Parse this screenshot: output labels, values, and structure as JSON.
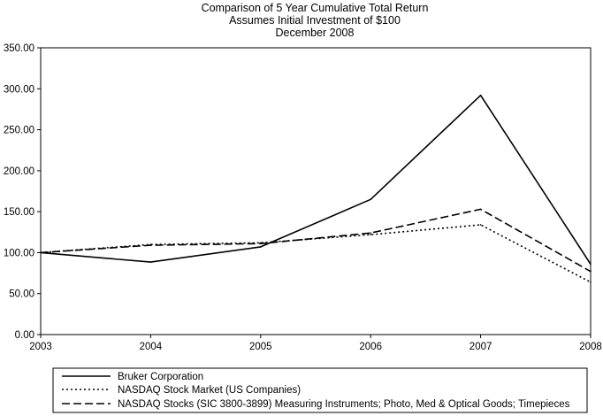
{
  "chart_data": {
    "type": "line",
    "title_lines": [
      "Comparison of 5 Year Cumulative Total Return",
      "Assumes Initial Investment of $100",
      "December 2008"
    ],
    "xlabel": "",
    "ylabel": "",
    "categories": [
      "2003",
      "2004",
      "2005",
      "2006",
      "2007",
      "2008"
    ],
    "ylim": [
      0,
      350
    ],
    "y_ticks": [
      "0.00",
      "50.00",
      "100.00",
      "150.00",
      "200.00",
      "250.00",
      "300.00",
      "350.00"
    ],
    "grid": false,
    "legend_position": "bottom",
    "series": [
      {
        "name": "Bruker Corporation",
        "style": "solid",
        "color": "#000000",
        "values": [
          100,
          88.5,
          107,
          165,
          292,
          86
        ]
      },
      {
        "name": "NASDAQ Stock Market (US Companies)",
        "style": "dotted",
        "color": "#000000",
        "values": [
          100,
          110,
          112,
          122,
          134,
          64
        ]
      },
      {
        "name": "NASDAQ Stocks (SIC 3800-3899) Measuring Instruments; Photo, Med & Optical Goods; Timepieces",
        "style": "dashed",
        "color": "#000000",
        "values": [
          100,
          109,
          111,
          124,
          153,
          77
        ]
      }
    ]
  }
}
